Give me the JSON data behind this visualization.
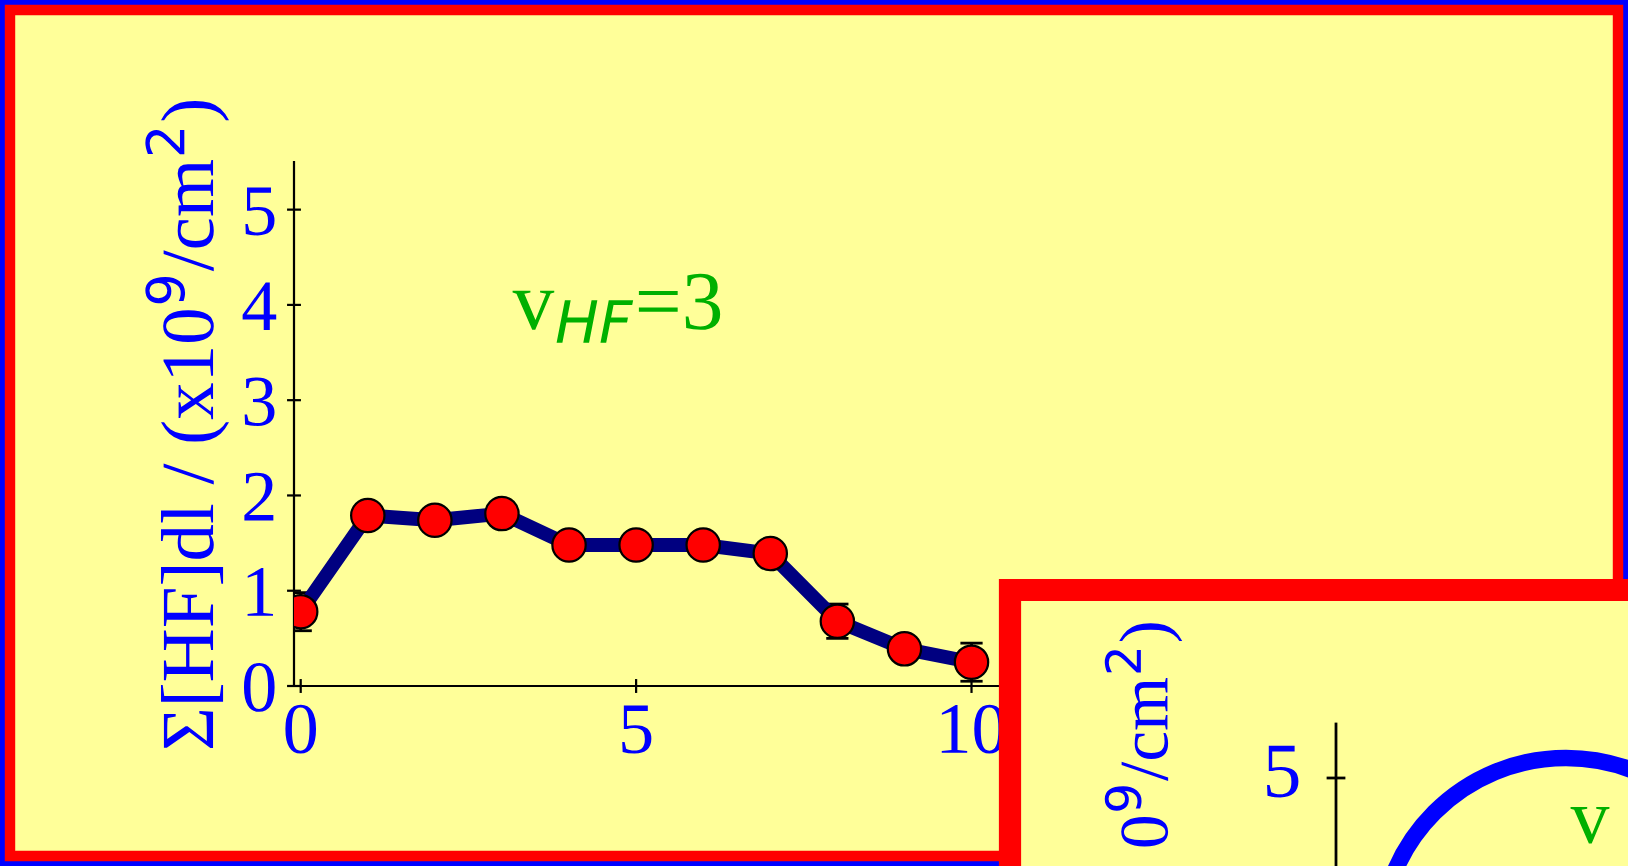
{
  "chart_data": [
    {
      "type": "line",
      "ylabel": "Σ[HF]dl / (x10$^{9}$/cm$^{2}$)",
      "x": [
        0,
        1,
        2,
        3,
        4,
        5,
        6,
        7,
        8,
        9,
        10
      ],
      "series": [
        {
          "color": "#000080",
          "values": [
            0.78,
            1.79,
            1.74,
            1.81,
            1.48,
            1.48,
            1.48,
            1.39,
            0.68,
            0.39,
            0.25
          ],
          "errors": [
            0.2,
            null,
            null,
            null,
            null,
            null,
            null,
            null,
            0.18,
            null,
            0.2
          ]
        }
      ],
      "xlim": [
        -0.1,
        16
      ],
      "xticks": [
        0,
        5,
        10
      ],
      "ylim": [
        0,
        5.5
      ],
      "yticks": [
        0,
        1,
        2,
        3,
        4,
        5
      ],
      "marker": "circle",
      "grid": false,
      "annotations": [
        "v$_{HF}$=3"
      ]
    },
    {
      "type": "other",
      "ylabel": "0$^{9}$/cm$^{2}$)",
      "annotations": [
        "5",
        "v"
      ]
    }
  ]
}
